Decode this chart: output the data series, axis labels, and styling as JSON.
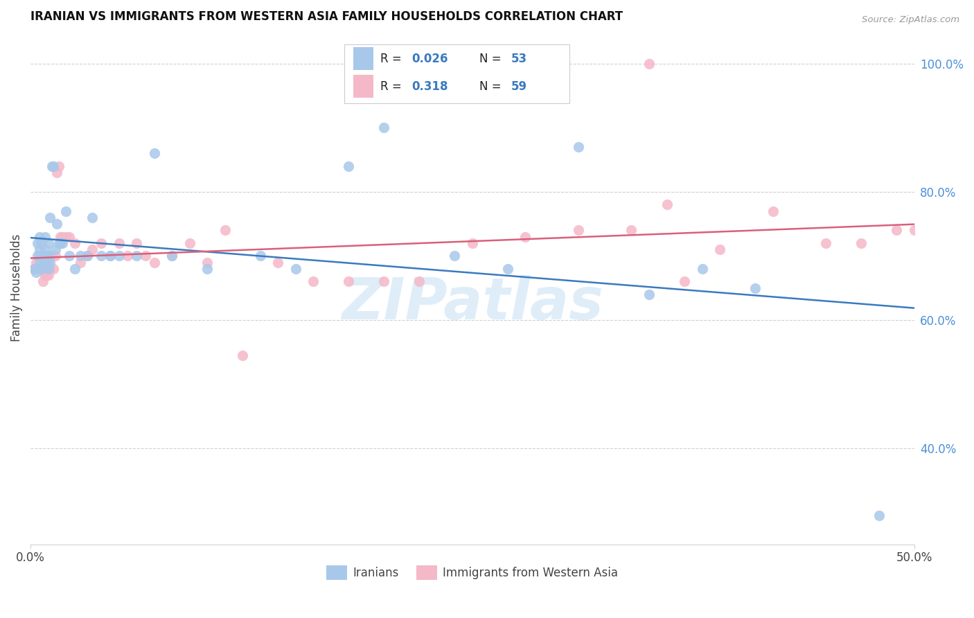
{
  "title": "IRANIAN VS IMMIGRANTS FROM WESTERN ASIA FAMILY HOUSEHOLDS CORRELATION CHART",
  "source": "Source: ZipAtlas.com",
  "ylabel": "Family Households",
  "xlim": [
    0.0,
    0.5
  ],
  "ylim": [
    0.25,
    1.05
  ],
  "legend1_R": "0.026",
  "legend1_N": "53",
  "legend2_R": "0.318",
  "legend2_N": "59",
  "color_blue": "#a8c8ea",
  "color_pink": "#f5b8c8",
  "trendline_blue": "#3a7abf",
  "trendline_pink": "#d9607a",
  "watermark": "ZIPatlas",
  "grid_color": "#d0d0d0",
  "iranians_x": [
    0.002,
    0.003,
    0.004,
    0.004,
    0.005,
    0.005,
    0.005,
    0.006,
    0.006,
    0.006,
    0.007,
    0.007,
    0.008,
    0.008,
    0.008,
    0.009,
    0.009,
    0.01,
    0.01,
    0.01,
    0.011,
    0.011,
    0.012,
    0.013,
    0.014,
    0.015,
    0.016,
    0.017,
    0.018,
    0.02,
    0.022,
    0.025,
    0.028,
    0.032,
    0.035,
    0.04,
    0.045,
    0.05,
    0.06,
    0.07,
    0.08,
    0.1,
    0.13,
    0.15,
    0.18,
    0.2,
    0.24,
    0.27,
    0.31,
    0.35,
    0.38,
    0.41,
    0.48
  ],
  "iranians_y": [
    0.68,
    0.675,
    0.7,
    0.72,
    0.69,
    0.71,
    0.73,
    0.68,
    0.7,
    0.72,
    0.685,
    0.7,
    0.69,
    0.71,
    0.73,
    0.685,
    0.7,
    0.68,
    0.7,
    0.72,
    0.69,
    0.76,
    0.84,
    0.84,
    0.71,
    0.75,
    0.72,
    0.72,
    0.72,
    0.77,
    0.7,
    0.68,
    0.7,
    0.7,
    0.76,
    0.7,
    0.7,
    0.7,
    0.7,
    0.86,
    0.7,
    0.68,
    0.7,
    0.68,
    0.84,
    0.9,
    0.7,
    0.68,
    0.87,
    0.64,
    0.68,
    0.65,
    0.295
  ],
  "western_asia_x": [
    0.002,
    0.003,
    0.004,
    0.005,
    0.005,
    0.006,
    0.006,
    0.007,
    0.007,
    0.008,
    0.008,
    0.009,
    0.009,
    0.01,
    0.01,
    0.011,
    0.012,
    0.013,
    0.014,
    0.015,
    0.016,
    0.017,
    0.018,
    0.02,
    0.022,
    0.025,
    0.028,
    0.032,
    0.035,
    0.04,
    0.045,
    0.05,
    0.055,
    0.06,
    0.065,
    0.07,
    0.08,
    0.09,
    0.1,
    0.11,
    0.12,
    0.14,
    0.16,
    0.18,
    0.2,
    0.22,
    0.25,
    0.28,
    0.31,
    0.34,
    0.36,
    0.39,
    0.42,
    0.45,
    0.47,
    0.49,
    0.5,
    0.35,
    0.37
  ],
  "western_asia_y": [
    0.68,
    0.69,
    0.68,
    0.68,
    0.7,
    0.68,
    0.7,
    0.66,
    0.69,
    0.67,
    0.69,
    0.67,
    0.69,
    0.67,
    0.69,
    0.68,
    0.7,
    0.68,
    0.7,
    0.83,
    0.84,
    0.73,
    0.73,
    0.73,
    0.73,
    0.72,
    0.69,
    0.7,
    0.71,
    0.72,
    0.7,
    0.72,
    0.7,
    0.72,
    0.7,
    0.69,
    0.7,
    0.72,
    0.69,
    0.74,
    0.545,
    0.69,
    0.66,
    0.66,
    0.66,
    0.66,
    0.72,
    0.73,
    0.74,
    0.74,
    0.78,
    0.71,
    0.77,
    0.72,
    0.72,
    0.74,
    0.74,
    1.0,
    0.66
  ]
}
